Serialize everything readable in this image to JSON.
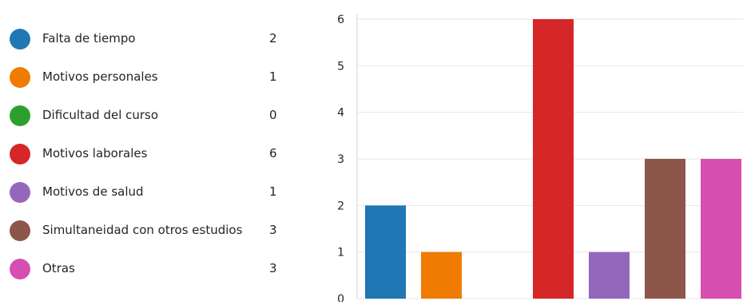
{
  "legend": {
    "items": [
      {
        "label": "Falta de tiempo",
        "count": "2",
        "color": "#1f77b4"
      },
      {
        "label": "Motivos personales",
        "count": "1",
        "color": "#ef7c00"
      },
      {
        "label": "Dificultad del curso",
        "count": "0",
        "color": "#2ca02c"
      },
      {
        "label": "Motivos laborales",
        "count": "6",
        "color": "#d62728"
      },
      {
        "label": "Motivos de salud",
        "count": "1",
        "color": "#9467bd"
      },
      {
        "label": "Simultaneidad con otros estudios",
        "count": "3",
        "color": "#8c564b"
      },
      {
        "label": "Otras",
        "count": "3",
        "color": "#d64fb0"
      }
    ]
  },
  "chart_data": {
    "type": "bar",
    "categories": [
      "Falta de tiempo",
      "Motivos personales",
      "Dificultad del curso",
      "Motivos laborales",
      "Motivos de salud",
      "Simultaneidad con otros estudios",
      "Otras"
    ],
    "values": [
      2,
      1,
      0,
      6,
      1,
      3,
      3
    ],
    "colors": [
      "#1f77b4",
      "#ef7c00",
      "#2ca02c",
      "#d62728",
      "#9467bd",
      "#8c564b",
      "#d64fb0"
    ],
    "yticks": [
      "0",
      "1",
      "2",
      "3",
      "4",
      "5",
      "6"
    ],
    "ylim": [
      0,
      6
    ],
    "grid": true,
    "title": "",
    "xlabel": "",
    "ylabel": ""
  }
}
